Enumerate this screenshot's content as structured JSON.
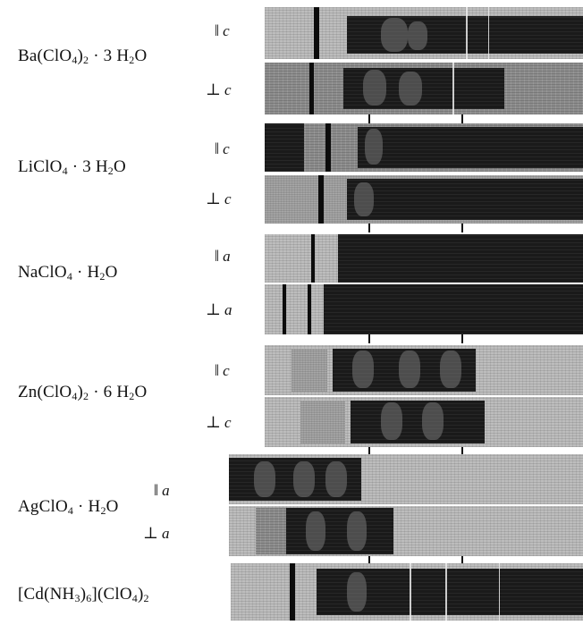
{
  "compounds": [
    {
      "formula": {
        "a": "Ba(ClO",
        "s1": "4",
        "b": ")",
        "s2": "2",
        "c": " · 3 H",
        "s3": "2",
        "d": "O"
      },
      "pol_top": {
        "sym": "‖",
        "axis": "c"
      },
      "pol_bottom": {
        "sym": "⊥",
        "axis": "c"
      }
    },
    {
      "formula": {
        "a": "LiClO",
        "s1": "4",
        "b": " · 3 H",
        "s2": "2",
        "c": "O",
        "s3": "",
        "d": ""
      },
      "pol_top": {
        "sym": "‖",
        "axis": "c"
      },
      "pol_bottom": {
        "sym": "⊥",
        "axis": "c"
      }
    },
    {
      "formula": {
        "a": "NaClO",
        "s1": "4",
        "b": " · H",
        "s2": "2",
        "c": "O",
        "s3": "",
        "d": ""
      },
      "pol_top": {
        "sym": "‖",
        "axis": "a"
      },
      "pol_bottom": {
        "sym": "⊥",
        "axis": "a"
      }
    },
    {
      "formula": {
        "a": "Zn(ClO",
        "s1": "4",
        "b": ")",
        "s2": "2",
        "c": " · 6 H",
        "s3": "2",
        "d": "O"
      },
      "pol_top": {
        "sym": "‖",
        "axis": "c"
      },
      "pol_bottom": {
        "sym": "⊥",
        "axis": "c"
      }
    },
    {
      "formula": {
        "a": "AgClO",
        "s1": "4",
        "b": " · H",
        "s2": "2",
        "c": "O",
        "s3": "",
        "d": ""
      },
      "pol_top": {
        "sym": "‖",
        "axis": "a"
      },
      "pol_bottom": {
        "sym": "⊥",
        "axis": "a"
      }
    },
    {
      "formula": {
        "a": "[Cd(NH",
        "s1": "3",
        "b": ")",
        "s2": "6",
        "c": "](ClO",
        "s3": "4",
        "d": ")",
        "s4": "2"
      }
    }
  ]
}
